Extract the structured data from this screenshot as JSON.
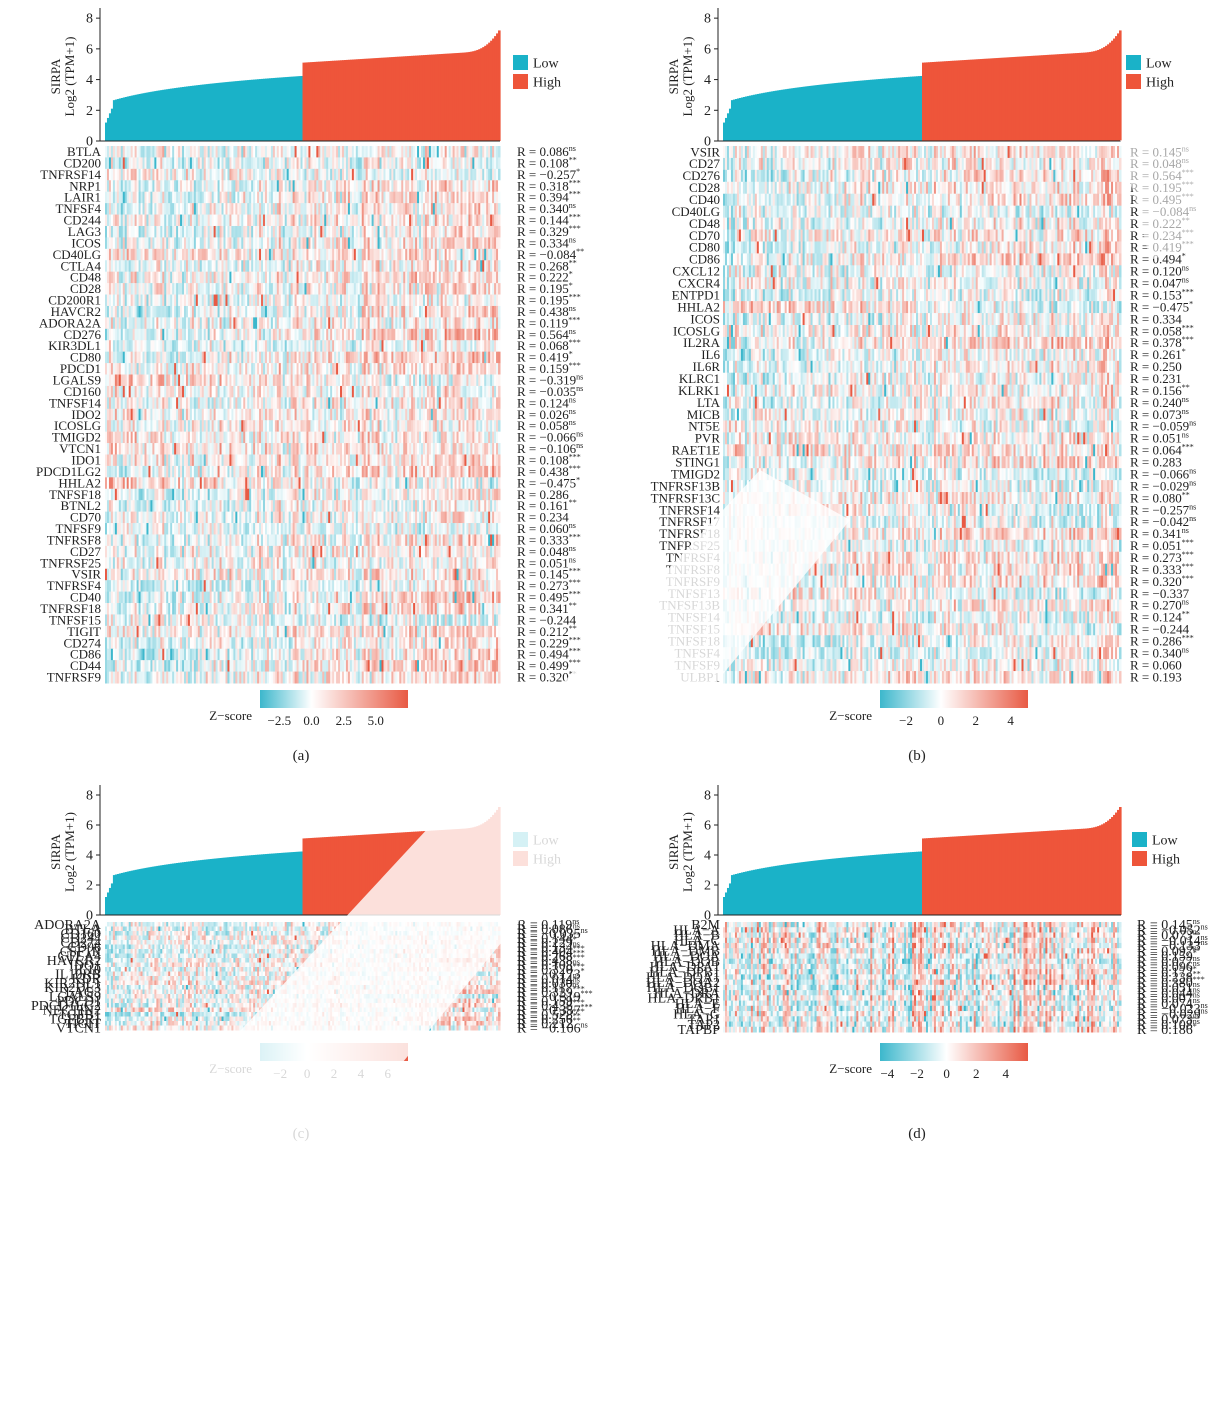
{
  "retraction_mark": {
    "text": "RETRACTED",
    "color": "#d9d9d9"
  },
  "colors": {
    "low": "#1ab2c8",
    "high": "#ee553a",
    "heat_neg": "#3cb7cc",
    "heat_pos": "#e85a44",
    "heat_mid": "#ffffff"
  },
  "chart_data": [
    {
      "type": "heatmap",
      "panel_label": "(a)",
      "top_barplot": {
        "ylabel_line1": "SIRPA",
        "ylabel_line2": "Log2 (TPM+1)",
        "yticks": [
          "0",
          "2",
          "4",
          "6",
          "8"
        ],
        "ylim": [
          0,
          8.4
        ]
      },
      "legend": [
        {
          "label": "Low"
        },
        {
          "label": "High"
        }
      ],
      "zscore": {
        "title": "Z−score",
        "ticks": [
          "−2.5",
          "0.0",
          "2.5",
          "5.0"
        ],
        "range": [
          -4,
          7.5
        ],
        "tick_values": [
          -2.5,
          0,
          2.5,
          5
        ]
      },
      "rows": [
        {
          "gene": "BTLA",
          "r": "R = 0.086",
          "sig": "ns"
        },
        {
          "gene": "CD200",
          "r": "R = 0.108",
          "sig": "**"
        },
        {
          "gene": "TNFRSF14",
          "r": "R = −0.257",
          "sig": "*"
        },
        {
          "gene": "NRP1",
          "r": "R = 0.318",
          "sig": "***"
        },
        {
          "gene": "LAIR1",
          "r": "R = 0.394",
          "sig": "***"
        },
        {
          "gene": "TNFSF4",
          "r": "R = 0.340",
          "sig": "ns"
        },
        {
          "gene": "CD244",
          "r": "R = 0.144",
          "sig": "***"
        },
        {
          "gene": "LAG3",
          "r": "R = 0.329",
          "sig": "***"
        },
        {
          "gene": "ICOS",
          "r": "R = 0.334",
          "sig": "ns"
        },
        {
          "gene": "CD40LG",
          "r": "R = −0.084",
          "sig": "**"
        },
        {
          "gene": "CTLA4",
          "r": "R = 0.268",
          "sig": "**"
        },
        {
          "gene": "CD48",
          "r": "R = 0.222",
          "sig": "*"
        },
        {
          "gene": "CD28",
          "r": "R = 0.195",
          "sig": "*"
        },
        {
          "gene": "CD200R1",
          "r": "R = 0.195",
          "sig": "***"
        },
        {
          "gene": "HAVCR2",
          "r": "R = 0.438",
          "sig": "ns"
        },
        {
          "gene": "ADORA2A",
          "r": "R = 0.119",
          "sig": "***"
        },
        {
          "gene": "CD276",
          "r": "R = 0.564",
          "sig": "ns"
        },
        {
          "gene": "KIR3DL1",
          "r": "R = 0.068",
          "sig": "***"
        },
        {
          "gene": "CD80",
          "r": "R = 0.419",
          "sig": "*"
        },
        {
          "gene": "PDCD1",
          "r": "R = 0.159",
          "sig": "***"
        },
        {
          "gene": "LGALS9",
          "r": "R = −0.319",
          "sig": "ns"
        },
        {
          "gene": "CD160",
          "r": "R = −0.035",
          "sig": "ns"
        },
        {
          "gene": "TNFSF14",
          "r": "R = 0.124",
          "sig": "ns"
        },
        {
          "gene": "IDO2",
          "r": "R = 0.026",
          "sig": "ns"
        },
        {
          "gene": "ICOSLG",
          "r": "R = 0.058",
          "sig": "ns"
        },
        {
          "gene": "TMIGD2",
          "r": "R = −0.066",
          "sig": "ns"
        },
        {
          "gene": "VTCN1",
          "r": "R = −0.106",
          "sig": "ns"
        },
        {
          "gene": "IDO1",
          "r": "R = 0.108",
          "sig": "***"
        },
        {
          "gene": "PDCD1LG2",
          "r": "R = 0.438",
          "sig": "***"
        },
        {
          "gene": "HHLA2",
          "r": "R = −0.475",
          "sig": "*"
        },
        {
          "gene": "TNFSF18",
          "r": "R = 0.286",
          "sig": ""
        },
        {
          "gene": "BTNL2",
          "r": "R = 0.161",
          "sig": "**"
        },
        {
          "gene": "CD70",
          "r": "R = 0.234",
          "sig": ""
        },
        {
          "gene": "TNFSF9",
          "r": "R = 0.060",
          "sig": "ns"
        },
        {
          "gene": "TNFRSF8",
          "r": "R = 0.333",
          "sig": "***"
        },
        {
          "gene": "CD27",
          "r": "R = 0.048",
          "sig": "ns"
        },
        {
          "gene": "TNFRSF25",
          "r": "R = 0.051",
          "sig": "ns"
        },
        {
          "gene": "VSIR",
          "r": "R = 0.145",
          "sig": "***"
        },
        {
          "gene": "TNFRSF4",
          "r": "R = 0.273",
          "sig": "***"
        },
        {
          "gene": "CD40",
          "r": "R = 0.495",
          "sig": "***"
        },
        {
          "gene": "TNFRSF18",
          "r": "R = 0.341",
          "sig": "**"
        },
        {
          "gene": "TNFSF15",
          "r": "R = −0.244",
          "sig": ""
        },
        {
          "gene": "TIGIT",
          "r": "R = 0.212",
          "sig": "**"
        },
        {
          "gene": "CD274",
          "r": "R = 0.229",
          "sig": "***"
        },
        {
          "gene": "CD86",
          "r": "R = 0.494",
          "sig": "***"
        },
        {
          "gene": "CD44",
          "r": "R = 0.499",
          "sig": "***"
        },
        {
          "gene": "TNFRSF9",
          "r": "R = 0.320",
          "sig": "**"
        }
      ]
    },
    {
      "type": "heatmap",
      "panel_label": "(b)",
      "top_barplot": {
        "ylabel_line1": "SIRPA",
        "ylabel_line2": "Log2 (TPM+1)",
        "yticks": [
          "0",
          "2",
          "4",
          "6",
          "8"
        ],
        "ylim": [
          0,
          8.4
        ]
      },
      "legend": [
        {
          "label": "Low"
        },
        {
          "label": "High"
        }
      ],
      "zscore": {
        "title": "Z−score",
        "ticks": [
          "−2",
          "0",
          "2",
          "4"
        ],
        "range": [
          -3.5,
          5
        ],
        "tick_values": [
          -2,
          0,
          2,
          4
        ]
      },
      "rows": [
        {
          "gene": "VSIR",
          "r": "R = 0.145",
          "sig": "ns"
        },
        {
          "gene": "CD27",
          "r": "R = 0.048",
          "sig": "ns"
        },
        {
          "gene": "CD276",
          "r": "R = 0.564",
          "sig": "***"
        },
        {
          "gene": "CD28",
          "r": "R = 0.195",
          "sig": "***"
        },
        {
          "gene": "CD40",
          "r": "R = 0.495",
          "sig": "***"
        },
        {
          "gene": "CD40LG",
          "r": "R = −0.084",
          "sig": "ns"
        },
        {
          "gene": "CD48",
          "r": "R = 0.222",
          "sig": "**"
        },
        {
          "gene": "CD70",
          "r": "R = 0.234",
          "sig": "***"
        },
        {
          "gene": "CD80",
          "r": "R = 0.419",
          "sig": "***"
        },
        {
          "gene": "CD86",
          "r": "R = 0.494",
          "sig": "*"
        },
        {
          "gene": "CXCL12",
          "r": "R = 0.120",
          "sig": "ns"
        },
        {
          "gene": "CXCR4",
          "r": "R = 0.047",
          "sig": "ns"
        },
        {
          "gene": "ENTPD1",
          "r": "R = 0.153",
          "sig": "***"
        },
        {
          "gene": "HHLA2",
          "r": "R = −0.475",
          "sig": "*"
        },
        {
          "gene": "ICOS",
          "r": "R = 0.334",
          "sig": ""
        },
        {
          "gene": "ICOSLG",
          "r": "R = 0.058",
          "sig": "***"
        },
        {
          "gene": "IL2RA",
          "r": "R = 0.378",
          "sig": "***"
        },
        {
          "gene": "IL6",
          "r": "R = 0.261",
          "sig": "*"
        },
        {
          "gene": "IL6R",
          "r": "R = 0.250",
          "sig": ""
        },
        {
          "gene": "KLRC1",
          "r": "R = 0.231",
          "sig": ""
        },
        {
          "gene": "KLRK1",
          "r": "R = 0.156",
          "sig": "**"
        },
        {
          "gene": "LTA",
          "r": "R = 0.240",
          "sig": "ns"
        },
        {
          "gene": "MICB",
          "r": "R = 0.073",
          "sig": "ns"
        },
        {
          "gene": "NT5E",
          "r": "R = −0.059",
          "sig": "ns"
        },
        {
          "gene": "PVR",
          "r": "R = 0.051",
          "sig": "ns"
        },
        {
          "gene": "RAET1E",
          "r": "R = 0.064",
          "sig": "***"
        },
        {
          "gene": "STING1",
          "r": "R = 0.283",
          "sig": ""
        },
        {
          "gene": "TMIGD2",
          "r": "R = −0.066",
          "sig": "ns"
        },
        {
          "gene": "TNFRSF13B",
          "r": "R = −0.029",
          "sig": "ns"
        },
        {
          "gene": "TNFRSF13C",
          "r": "R = 0.080",
          "sig": "**"
        },
        {
          "gene": "TNFRSF14",
          "r": "R = −0.257",
          "sig": "ns"
        },
        {
          "gene": "TNFRSF17",
          "r": "R = −0.042",
          "sig": "ns"
        },
        {
          "gene": "TNFRSF18",
          "r": "R = 0.341",
          "sig": "ns"
        },
        {
          "gene": "TNFRSF25",
          "r": "R = 0.051",
          "sig": "***"
        },
        {
          "gene": "TNFRSF4",
          "r": "R = 0.273",
          "sig": "***"
        },
        {
          "gene": "TNFRSF8",
          "r": "R = 0.333",
          "sig": "***"
        },
        {
          "gene": "TNFRSF9",
          "r": "R = 0.320",
          "sig": "***"
        },
        {
          "gene": "TNFSF13",
          "r": "R = −0.337",
          "sig": ""
        },
        {
          "gene": "TNFSF13B",
          "r": "R = 0.270",
          "sig": "ns"
        },
        {
          "gene": "TNFSF14",
          "r": "R = 0.124",
          "sig": "**"
        },
        {
          "gene": "TNFSF15",
          "r": "R = −0.244",
          "sig": ""
        },
        {
          "gene": "TNFSF18",
          "r": "R = 0.286",
          "sig": "***"
        },
        {
          "gene": "TNFSF4",
          "r": "R = 0.340",
          "sig": "ns"
        },
        {
          "gene": "TNFSF9",
          "r": "R = 0.060",
          "sig": ""
        },
        {
          "gene": "ULBP1",
          "r": "R = 0.193",
          "sig": ""
        }
      ]
    },
    {
      "type": "heatmap",
      "panel_label": "(c)",
      "top_barplot": {
        "ylabel_line1": "SIRPA",
        "ylabel_line2": "Log2 (TPM+1)",
        "yticks": [
          "0",
          "2",
          "4",
          "6",
          "8"
        ],
        "ylim": [
          0,
          8.4
        ]
      },
      "legend": [
        {
          "label": "Low"
        },
        {
          "label": "High"
        }
      ],
      "zscore": {
        "title": "Z−score",
        "ticks": [
          "−2",
          "0",
          "2",
          "4",
          "6"
        ],
        "range": [
          -3.5,
          7.5
        ],
        "tick_values": [
          -2,
          0,
          2,
          4,
          6
        ]
      },
      "rows": [
        {
          "gene": "ADORA2A",
          "r": "R = 0.119",
          "sig": "ns"
        },
        {
          "gene": "BTLA",
          "r": "R = 0.086",
          "sig": "ns"
        },
        {
          "gene": "CD160",
          "r": "R = −0.035",
          "sig": "ns"
        },
        {
          "gene": "CD244",
          "r": "R = 0.144",
          "sig": "**"
        },
        {
          "gene": "CD274",
          "r": "R = 0.229",
          "sig": "*"
        },
        {
          "gene": "CD96",
          "r": "R = 0.134",
          "sig": "ns"
        },
        {
          "gene": "CSF1R",
          "r": "R = 0.404",
          "sig": "***"
        },
        {
          "gene": "CTLA4",
          "r": "R = 0.268",
          "sig": "***"
        },
        {
          "gene": "HAVCR2",
          "r": "R = 0.438",
          "sig": "***"
        },
        {
          "gene": "IDO1",
          "r": "R = 0.108",
          "sig": "ns"
        },
        {
          "gene": "IL10",
          "r": "R = 0.320",
          "sig": "***"
        },
        {
          "gene": "IL10RB",
          "r": "R = −0.173",
          "sig": "*"
        },
        {
          "gene": "KDR",
          "r": "R = 0.014",
          "sig": "ns"
        },
        {
          "gene": "KIR2DL1",
          "r": "R = 0.030",
          "sig": "ns"
        },
        {
          "gene": "KIR2DL3",
          "r": "R = 0.117",
          "sig": "ns"
        },
        {
          "gene": "LAG3",
          "r": "R = 0.329",
          "sig": "***"
        },
        {
          "gene": "LGALS9",
          "r": "R = −0.319",
          "sig": "***"
        },
        {
          "gene": "PDCD1",
          "r": "R = 0.159",
          "sig": "**"
        },
        {
          "gene": "PDCD1LG2",
          "r": "R = 0.438",
          "sig": "***"
        },
        {
          "gene": "NECTIN2",
          "r": "R = −0.357",
          "sig": "***"
        },
        {
          "gene": "TGFB1",
          "r": "R = 0.528",
          "sig": "***"
        },
        {
          "gene": "TGFBR1",
          "r": "R = 0.256",
          "sig": "**"
        },
        {
          "gene": "TIGIT",
          "r": "R = 0.212",
          "sig": "**"
        },
        {
          "gene": "VTCN1",
          "r": "R = −0.106",
          "sig": "ns"
        }
      ]
    },
    {
      "type": "heatmap",
      "panel_label": "(d)",
      "top_barplot": {
        "ylabel_line1": "SIRPA",
        "ylabel_line2": "Log2 (TPM+1)",
        "yticks": [
          "0",
          "2",
          "4",
          "6",
          "8"
        ],
        "ylim": [
          0,
          8.4
        ]
      },
      "legend": [
        {
          "label": "Low"
        },
        {
          "label": "High"
        }
      ],
      "zscore": {
        "title": "Z−score",
        "ticks": [
          "−4",
          "−2",
          "0",
          "2",
          "4"
        ],
        "range": [
          -4.5,
          5.5
        ],
        "tick_values": [
          -4,
          -2,
          0,
          2,
          4
        ]
      },
      "rows": [
        {
          "gene": "B2M",
          "r": "R = 0.145",
          "sig": "ns"
        },
        {
          "gene": "HLA−A",
          "r": "R = −0.052",
          "sig": "ns"
        },
        {
          "gene": "HLA−B",
          "r": "R = 0.073",
          "sig": "ns"
        },
        {
          "gene": "HLA−C",
          "r": "R = −0.014",
          "sig": "ns"
        },
        {
          "gene": "HLA−DMA",
          "r": "R = −0.133",
          "sig": "ns"
        },
        {
          "gene": "HLA−DMB",
          "r": "R = 0.097",
          "sig": "ns"
        },
        {
          "gene": "HLA−DOA",
          "r": "R = 0.159",
          "sig": "*"
        },
        {
          "gene": "HLA−DOB",
          "r": "R = 0.077",
          "sig": "ns"
        },
        {
          "gene": "HLA−DPA1",
          "r": "R = 0.096",
          "sig": "ns"
        },
        {
          "gene": "HLA−DPB1",
          "r": "R = 0.172",
          "sig": "*"
        },
        {
          "gene": "HLA−DQA1",
          "r": "R = 0.238",
          "sig": "**"
        },
        {
          "gene": "HLA−DQA2",
          "r": "R = 0.380",
          "sig": "***"
        },
        {
          "gene": "HLA−DQB1",
          "r": "R = 0.051",
          "sig": "ns"
        },
        {
          "gene": "HLA−DRA",
          "r": "R = 0.044",
          "sig": "ns"
        },
        {
          "gene": "HLA−DRB1",
          "r": "R = 0.007",
          "sig": "ns"
        },
        {
          "gene": "HLA−E",
          "r": "R = 0.074",
          "sig": "ns"
        },
        {
          "gene": "HLA−F",
          "r": "R = −0.023",
          "sig": "ns"
        },
        {
          "gene": "HLA−G",
          "r": "R = −0.029",
          "sig": "ns"
        },
        {
          "gene": "TAP1",
          "r": "R = 0.073",
          "sig": "ns"
        },
        {
          "gene": "TAP2",
          "r": "R = 0.108",
          "sig": "ns"
        },
        {
          "gene": "TAPBP",
          "r": "R = 0.186",
          "sig": "*"
        }
      ]
    }
  ]
}
